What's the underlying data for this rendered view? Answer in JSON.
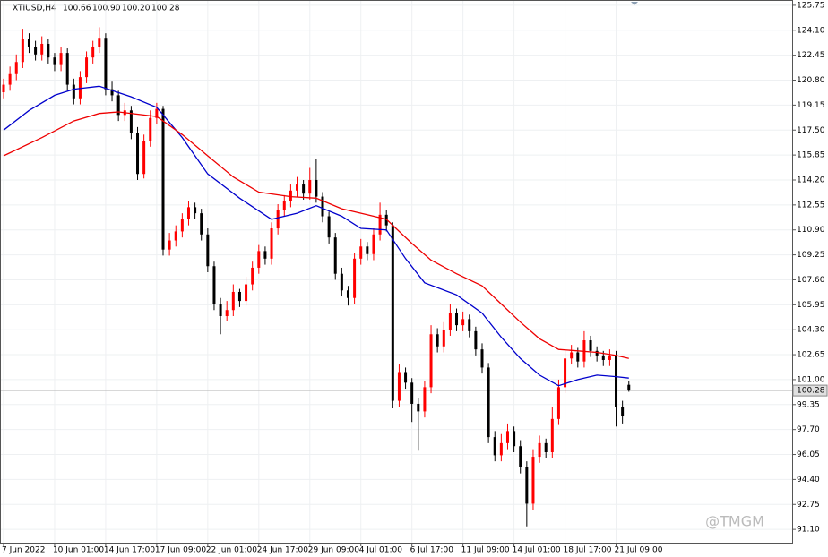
{
  "chart_data": {
    "type": "candlestick",
    "symbol": "XTIUSD,H4",
    "header_values": [
      {
        "value": 100.66,
        "label": "100.66"
      },
      {
        "value": 100.9,
        "label": "100.90"
      },
      {
        "value": 100.2,
        "label": "100.20"
      },
      {
        "value": 100.28,
        "label": "100.28"
      }
    ],
    "current_price": {
      "value": 100.28,
      "label": "100.28"
    },
    "watermark": "@TMGM",
    "up_color": "#ff0000",
    "down_color": "#000000",
    "grid": true,
    "categories": [
      "7 Jun 2022",
      null,
      null,
      null,
      null,
      null,
      null,
      null,
      "10 Jun 01:00",
      null,
      null,
      null,
      null,
      null,
      null,
      null,
      "14 Jun 17:00",
      null,
      null,
      null,
      null,
      null,
      null,
      null,
      "17 Jun 09:00",
      null,
      null,
      null,
      null,
      null,
      null,
      null,
      "22 Jun 01:00",
      null,
      null,
      null,
      null,
      null,
      null,
      null,
      "24 Jun 17:00",
      null,
      null,
      null,
      null,
      null,
      null,
      null,
      "29 Jun 09:00",
      null,
      null,
      null,
      null,
      null,
      null,
      null,
      "4 Jul 01:00",
      null,
      null,
      null,
      null,
      null,
      null,
      null,
      "6 Jul 17:00",
      null,
      null,
      null,
      null,
      null,
      null,
      null,
      "11 Jul 09:00",
      null,
      null,
      null,
      null,
      null,
      null,
      null,
      "14 Jul 01:00",
      null,
      null,
      null,
      null,
      null,
      null,
      null,
      "18 Jul 17:00",
      null,
      null,
      null,
      null,
      null,
      null,
      null,
      "21 Jul 09:00",
      null,
      null
    ],
    "open": [
      120.0,
      120.5,
      121.2,
      122.0,
      123.5,
      123.0,
      122.5,
      123.2,
      122.3,
      121.8,
      122.6,
      120.5,
      119.6,
      121.0,
      122.3,
      123.0,
      123.6,
      120.2,
      119.8,
      118.5,
      118.8,
      117.3,
      114.6,
      116.8,
      118.3,
      118.9,
      109.6,
      110.2,
      110.8,
      111.6,
      112.4,
      112.0,
      110.6,
      108.5,
      106.0,
      105.2,
      105.6,
      106.8,
      106.2,
      107.3,
      108.4,
      109.5,
      109.0,
      111.0,
      112.2,
      112.8,
      113.5,
      113.9,
      113.3,
      114.2,
      113.1,
      111.8,
      110.4,
      108.0,
      106.9,
      106.4,
      109.0,
      109.8,
      109.3,
      110.6,
      111.9,
      111.2,
      99.6,
      101.5,
      100.8,
      99.4,
      98.9,
      100.5,
      104.0,
      103.2,
      104.3,
      105.4,
      104.6,
      105.0,
      104.2,
      103.0,
      101.8,
      97.2,
      96.0,
      96.8,
      97.6,
      96.6,
      95.2,
      92.8,
      95.9,
      96.8,
      96.2,
      98.4,
      100.5,
      102.4,
      102.8,
      102.2,
      103.6,
      102.9,
      102.6,
      102.3,
      102.6,
      99.2,
      100.66
    ],
    "high": [
      120.9,
      121.7,
      122.5,
      124.2,
      123.9,
      123.4,
      123.7,
      123.5,
      122.6,
      123.0,
      122.9,
      120.9,
      121.4,
      122.7,
      123.4,
      124.3,
      123.9,
      120.7,
      120.1,
      119.3,
      119.1,
      117.7,
      117.2,
      118.8,
      119.3,
      119.1,
      110.7,
      111.2,
      112.0,
      112.8,
      112.7,
      112.3,
      111.0,
      108.8,
      106.4,
      106.2,
      107.3,
      107.0,
      107.8,
      108.8,
      109.9,
      109.8,
      111.4,
      112.6,
      113.2,
      113.9,
      114.4,
      114.2,
      115.0,
      115.6,
      113.4,
      112.1,
      110.7,
      108.4,
      107.2,
      109.4,
      110.3,
      110.1,
      111.0,
      112.7,
      112.2,
      111.4,
      102.0,
      101.8,
      101.1,
      99.8,
      100.9,
      104.6,
      104.4,
      104.8,
      106.0,
      105.7,
      105.5,
      105.3,
      104.5,
      103.4,
      102.1,
      97.6,
      97.4,
      98.1,
      97.9,
      97.0,
      95.6,
      96.4,
      97.3,
      97.1,
      99.2,
      101.0,
      102.9,
      103.3,
      103.1,
      104.2,
      103.9,
      103.2,
      102.9,
      103.0,
      102.9,
      99.6,
      100.9
    ],
    "low": [
      119.6,
      120.1,
      120.8,
      121.6,
      122.6,
      122.1,
      122.1,
      121.9,
      121.4,
      121.4,
      120.1,
      119.2,
      119.2,
      120.6,
      121.9,
      122.6,
      119.8,
      119.4,
      118.1,
      118.1,
      116.9,
      114.2,
      114.3,
      116.4,
      117.9,
      109.2,
      109.2,
      109.8,
      110.4,
      111.2,
      111.6,
      110.2,
      108.1,
      105.6,
      104.0,
      104.9,
      105.2,
      105.8,
      105.9,
      106.9,
      108.0,
      108.6,
      108.6,
      110.6,
      111.8,
      112.4,
      113.1,
      112.9,
      112.9,
      112.7,
      111.4,
      110.0,
      107.6,
      106.5,
      105.9,
      106.0,
      108.6,
      108.9,
      108.9,
      110.2,
      110.8,
      99.1,
      99.2,
      100.4,
      98.2,
      96.3,
      98.5,
      100.1,
      102.8,
      102.8,
      103.9,
      104.2,
      104.2,
      103.8,
      102.6,
      101.4,
      96.8,
      95.6,
      95.6,
      96.4,
      96.2,
      94.8,
      91.3,
      92.4,
      95.5,
      95.8,
      95.8,
      98.0,
      100.1,
      102.0,
      101.8,
      101.8,
      102.5,
      102.2,
      101.9,
      101.9,
      97.9,
      98.1,
      100.2
    ],
    "close": [
      120.5,
      121.2,
      122.0,
      123.5,
      123.0,
      122.5,
      123.2,
      122.3,
      121.8,
      122.6,
      120.5,
      119.6,
      121.0,
      122.3,
      123.0,
      123.6,
      120.2,
      119.8,
      118.5,
      118.8,
      117.3,
      114.6,
      116.8,
      118.3,
      118.9,
      109.6,
      110.2,
      110.8,
      111.6,
      112.4,
      112.0,
      110.6,
      108.5,
      106.0,
      105.2,
      105.6,
      106.8,
      106.2,
      107.3,
      108.4,
      109.5,
      109.0,
      111.0,
      112.2,
      112.8,
      113.5,
      113.9,
      113.3,
      114.2,
      113.1,
      111.8,
      110.4,
      108.0,
      106.9,
      106.4,
      109.0,
      109.8,
      109.3,
      110.6,
      111.9,
      111.2,
      99.6,
      101.5,
      100.8,
      99.4,
      98.9,
      100.5,
      104.0,
      103.2,
      104.3,
      105.4,
      104.6,
      105.0,
      104.2,
      103.0,
      101.8,
      97.2,
      96.0,
      96.8,
      97.6,
      96.6,
      95.2,
      92.8,
      95.9,
      96.8,
      96.2,
      98.4,
      100.5,
      102.4,
      102.8,
      102.2,
      103.6,
      102.9,
      102.6,
      102.3,
      102.6,
      99.2,
      98.6,
      100.28
    ],
    "lines": [
      {
        "color": "#0000cc",
        "x": [
          0,
          4,
          8,
          11,
          15,
          20,
          24,
          28,
          32,
          37,
          42,
          46,
          49,
          53,
          56,
          60,
          63,
          66,
          71,
          75,
          78,
          81,
          84,
          87,
          90,
          93,
          96,
          98
        ],
        "values": [
          117.5,
          118.8,
          119.8,
          120.2,
          120.4,
          119.7,
          119.0,
          117.0,
          114.6,
          113.0,
          111.6,
          112.0,
          112.5,
          111.8,
          111.0,
          110.9,
          109.0,
          107.4,
          106.6,
          105.4,
          103.8,
          102.4,
          101.3,
          100.6,
          101.0,
          101.3,
          101.2,
          101.1
        ]
      },
      {
        "color": "#ee0000",
        "x": [
          0,
          6,
          11,
          15,
          18,
          24,
          28,
          32,
          36,
          40,
          45,
          49,
          53,
          57,
          60,
          64,
          67,
          71,
          75,
          78,
          81,
          84,
          87,
          90,
          93,
          96,
          98
        ],
        "values": [
          115.8,
          117.0,
          118.1,
          118.6,
          118.7,
          118.4,
          117.2,
          115.8,
          114.4,
          113.4,
          113.1,
          113.0,
          112.3,
          111.9,
          111.6,
          110.0,
          108.9,
          108.0,
          107.2,
          106.0,
          104.8,
          103.7,
          103.0,
          102.9,
          102.8,
          102.6,
          102.4
        ]
      }
    ],
    "ylim": [
      90.22,
      126.1
    ],
    "yticks": [
      125.75,
      {
        "value": 124.1,
        "label": "124.10"
      },
      122.45,
      {
        "value": 120.8,
        "label": "120.80"
      },
      119.15,
      {
        "value": 117.5,
        "label": "117.50"
      },
      115.85,
      {
        "value": 114.2,
        "label": "114.20"
      },
      112.55,
      {
        "value": 110.9,
        "label": "110.90"
      },
      109.25,
      {
        "value": 107.6,
        "label": "107.60"
      },
      105.95,
      {
        "value": 104.3,
        "label": "104.30"
      },
      102.65,
      {
        "value": 101.0,
        "label": "101.00"
      },
      99.35,
      {
        "value": 97.7,
        "label": "97.70"
      },
      96.05,
      {
        "value": 94.4,
        "label": "94.40"
      },
      92.75,
      {
        "value": 91.1,
        "label": "91.10"
      }
    ]
  }
}
